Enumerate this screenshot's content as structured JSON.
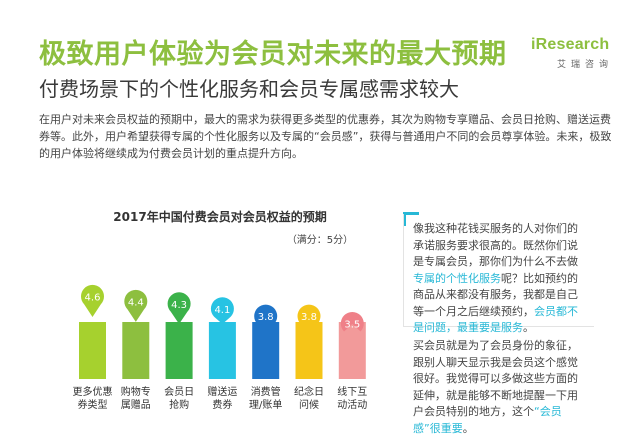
{
  "logo": {
    "word": "iResearch",
    "cn": "艾瑞咨询"
  },
  "header": {
    "title": "极致用户体验为会员对未来的最大预期",
    "subtitle": "付费场景下的个性化服务和会员专属感需求较大",
    "intro": "在用户对未来会员权益的预期中，最大的需求为获得更多类型的优惠券，其次为购物专享赠品、会员日抢购、赠送运费券等。此外，用户希望获得专属的个性化服务以及专属的“会员感”，获得与普通用户不同的会员尊享体验。未来，极致的用户体验将继续成为付费会员计划的重点提升方向。"
  },
  "chart_data": {
    "type": "bar",
    "title": "2017年中国付费会员对会员权益的预期",
    "subtitle": "（满分：5分）",
    "categories": [
      "更多优惠券类型",
      "购物专属赠品",
      "会员日抢购",
      "赠送运费券",
      "消费管理/账单",
      "纪念日问候",
      "线下互动活动"
    ],
    "category_lines": [
      [
        "更多优惠",
        "券类型"
      ],
      [
        "购物专",
        "属赠品"
      ],
      [
        "会员日",
        "抢购"
      ],
      [
        "赠送运",
        "费券"
      ],
      [
        "消费管",
        "理/账单"
      ],
      [
        "纪念日",
        "问候"
      ],
      [
        "线下互",
        "动活动"
      ]
    ],
    "values": [
      4.6,
      4.4,
      4.3,
      4.1,
      3.8,
      3.8,
      3.5
    ],
    "value_labels": [
      "4.6",
      "4.4",
      "4.3",
      "4.1",
      "3.8",
      "3.8",
      "3.5"
    ],
    "bar_colors": [
      "#a6d12e",
      "#8dbf3f",
      "#3bb24a",
      "#27c3e3",
      "#1f74c8",
      "#f5c518",
      "#f29a9a"
    ],
    "pin_colors": [
      "#a6d12e",
      "#8dbf3f",
      "#3bb24a",
      "#27c3e3",
      "#1f74c8",
      "#f5c518",
      "#ef8088"
    ],
    "ylim": [
      0,
      5
    ]
  },
  "quotes": [
    {
      "parts": [
        {
          "text": "像我这种花钱买服务的人对你们的承诺服务要求很高的。既然你们说是专属会员，那你们为什么不去做",
          "hl": false
        },
        {
          "text": "专属的个性化服务",
          "hl": true
        },
        {
          "text": "呢？比如预约的商品从来都没有服务，我都是自己等一个月之后继续预约，",
          "hl": false
        },
        {
          "text": "会员都不是问题，最重要是服务",
          "hl": true
        },
        {
          "text": "。",
          "hl": false
        }
      ]
    },
    {
      "parts": [
        {
          "text": "买会员就是为了会员身份的象征，跟别人聊天显示我是会员这个感觉很好。我觉得可以多做这些方面的延伸，就是能够不断地提醒一下用户会员特别的地方，这个",
          "hl": false
        },
        {
          "text": "“会员感”很重要",
          "hl": true
        },
        {
          "text": "。",
          "hl": false
        }
      ]
    }
  ]
}
